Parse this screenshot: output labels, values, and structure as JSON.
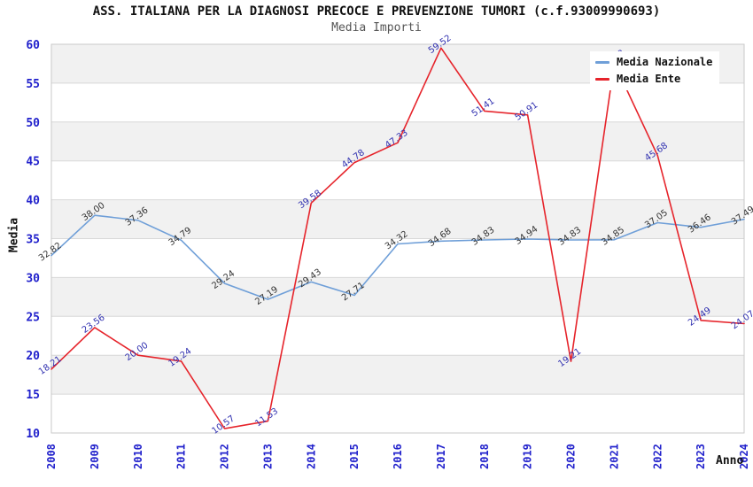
{
  "title": "ASS. ITALIANA PER LA DIAGNOSI PRECOCE E PREVENZIONE TUMORI (c.f.93009990693)",
  "subtitle": "Media Importi",
  "axes": {
    "x_label": "Anno",
    "y_label": "Media",
    "tick_color": "#2222cc",
    "y_ticks": [
      10,
      15,
      20,
      25,
      30,
      35,
      40,
      45,
      50,
      55,
      60
    ]
  },
  "legend": {
    "items": [
      {
        "label": "Media Nazionale",
        "color": "#6f9fd8"
      },
      {
        "label": "Media Ente",
        "color": "#e6242b"
      }
    ]
  },
  "colors": {
    "band_gray": "#f1f1f1",
    "band_white": "#ffffff",
    "gridline": "#d8d8d8",
    "plot_border": "#c9c9c9",
    "national_line": "#6f9fd8",
    "entity_line": "#e6242b",
    "national_label": "#333333",
    "entity_label": "#3030b0"
  },
  "chart_data": {
    "type": "line",
    "title": "ASS. ITALIANA PER LA DIAGNOSI PRECOCE E PREVENZIONE TUMORI (c.f.93009990693)",
    "subtitle": "Media Importi",
    "xlabel": "Anno",
    "ylabel": "Media",
    "ylim": [
      10,
      60
    ],
    "y_tick_step": 5,
    "grid": "horizontal-bands-alternating",
    "legend_position": "top-right",
    "x": [
      2008,
      2009,
      2010,
      2011,
      2012,
      2013,
      2014,
      2015,
      2016,
      2017,
      2018,
      2019,
      2020,
      2021,
      2022,
      2023,
      2024
    ],
    "series": [
      {
        "name": "Media Nazionale",
        "color": "#6f9fd8",
        "label_color": "#333333",
        "values": [
          32.82,
          38.0,
          37.36,
          34.79,
          29.24,
          27.19,
          29.43,
          27.71,
          34.32,
          34.68,
          34.83,
          34.94,
          34.83,
          34.85,
          37.05,
          36.46,
          37.49
        ]
      },
      {
        "name": "Media Ente",
        "color": "#e6242b",
        "label_color": "#3030b0",
        "values": [
          18.21,
          23.56,
          20.0,
          19.24,
          10.57,
          11.53,
          39.58,
          44.78,
          47.33,
          59.52,
          51.41,
          50.91,
          19.21,
          57.58,
          45.68,
          24.49,
          24.07
        ]
      }
    ]
  }
}
